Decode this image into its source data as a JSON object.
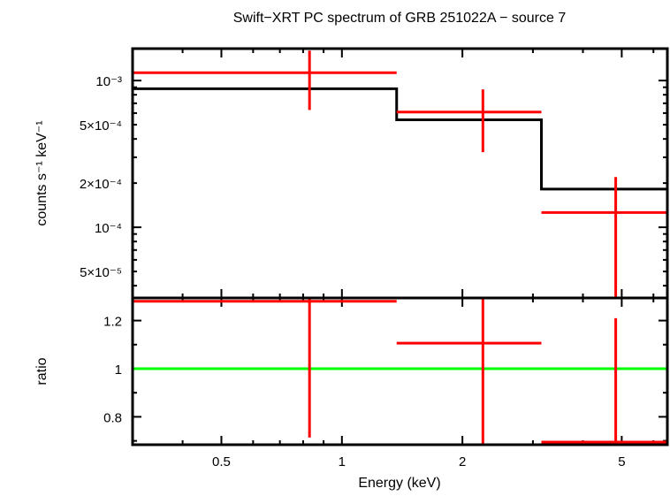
{
  "chart_data": [
    {
      "type": "scatter",
      "panel": "spectrum",
      "title": "Swift−XRT PC spectrum of GRB 251022A − source 7",
      "xlabel": "Energy (keV)",
      "ylabel": "counts s⁻¹ keV⁻¹",
      "xscale": "log",
      "yscale": "log",
      "xlim": [
        0.3,
        6.5
      ],
      "ylim": [
        3.3e-05,
        0.00165
      ],
      "grid": false,
      "y_tick_labels": [
        {
          "value": 0.001,
          "label": "10⁻³"
        },
        {
          "value": 0.0005,
          "label": "5×10⁻⁴"
        },
        {
          "value": 0.0002,
          "label": "2×10⁻⁴"
        },
        {
          "value": 0.0001,
          "label": "10⁻⁴"
        },
        {
          "value": 5e-05,
          "label": "5×10⁻⁵"
        }
      ],
      "data": {
        "color": "#ff0000",
        "points": [
          {
            "x": 0.83,
            "xlo": 0.3,
            "xhi": 1.37,
            "y": 0.00113,
            "ylo": 0.00063,
            "yhi": 0.0016
          },
          {
            "x": 2.25,
            "xlo": 1.37,
            "xhi": 3.15,
            "y": 0.00061,
            "ylo": 0.000325,
            "yhi": 0.00087
          },
          {
            "x": 4.83,
            "xlo": 3.15,
            "xhi": 6.5,
            "y": 0.000126,
            "ylo": 2e-05,
            "yhi": 0.00022
          }
        ]
      },
      "model": {
        "color": "#000000",
        "steps": [
          {
            "xlo": 0.3,
            "xhi": 1.37,
            "y": 0.00088
          },
          {
            "xlo": 1.37,
            "xhi": 3.15,
            "y": 0.00054
          },
          {
            "xlo": 3.15,
            "xhi": 6.5,
            "y": 0.000182
          }
        ]
      }
    },
    {
      "type": "scatter",
      "panel": "ratio",
      "xlabel": "Energy (keV)",
      "ylabel": "ratio",
      "xscale": "log",
      "yscale": "linear",
      "xlim": [
        0.3,
        6.5
      ],
      "ylim": [
        0.684,
        1.294
      ],
      "grid": false,
      "x_tick_labels": [
        {
          "value": 0.5,
          "label": "0.5"
        },
        {
          "value": 1,
          "label": "1"
        },
        {
          "value": 2,
          "label": "2"
        },
        {
          "value": 5,
          "label": "5"
        }
      ],
      "y_tick_labels": [
        {
          "value": 1.2,
          "label": "1.2"
        },
        {
          "value": 1.0,
          "label": "1"
        },
        {
          "value": 0.8,
          "label": "0.8"
        }
      ],
      "reference_line": {
        "y": 1,
        "color": "#00ff00"
      },
      "data": {
        "color": "#ff0000",
        "points": [
          {
            "x": 0.83,
            "xlo": 0.3,
            "xhi": 1.37,
            "y": 1.28,
            "ylo": 0.714,
            "yhi": 1.4
          },
          {
            "x": 2.25,
            "xlo": 1.37,
            "xhi": 3.15,
            "y": 1.106,
            "ylo": 0.6,
            "yhi": 1.4
          },
          {
            "x": 4.83,
            "xlo": 3.15,
            "xhi": 6.5,
            "y": 0.695,
            "ylo": 0.6,
            "yhi": 1.21
          }
        ]
      }
    }
  ]
}
